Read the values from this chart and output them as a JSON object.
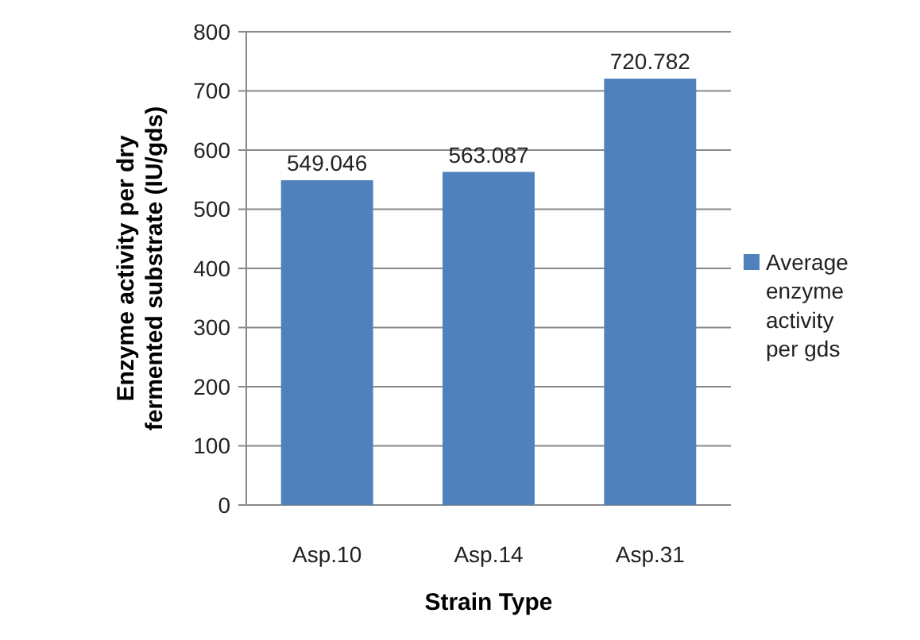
{
  "chart_data": {
    "type": "bar",
    "xlabel": "Strain Type",
    "ylabel": "Enzyme activity per dry fermented substrate (IU/gds)",
    "categories": [
      "Asp.10",
      "Asp.14",
      "Asp.31"
    ],
    "series": [
      {
        "name": "Average enzyme activity per gds",
        "color": "#4f81bd",
        "values": [
          549.046,
          563.087,
          720.782
        ]
      }
    ],
    "ylim": [
      0,
      800
    ],
    "yticks": [
      0,
      100,
      200,
      300,
      400,
      500,
      600,
      700,
      800
    ],
    "grid": "y",
    "legend": "right",
    "data_labels": true
  }
}
